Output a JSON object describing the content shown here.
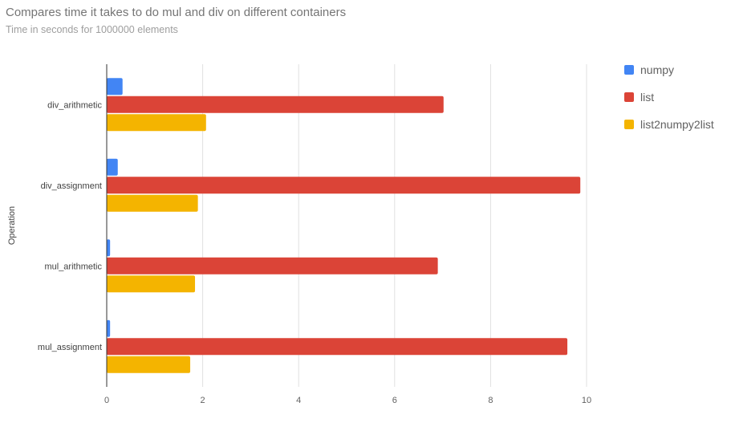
{
  "chart_data": {
    "type": "bar",
    "orientation": "horizontal",
    "title": "Compares time it takes to do mul and div on different containers",
    "subtitle": "Time in seconds for 1000000 elements",
    "ylabel": "Operation",
    "xlabel": "",
    "categories": [
      "div_arithmetic",
      "div_assignment",
      "mul_arithmetic",
      "mul_assignment"
    ],
    "series": [
      {
        "name": "numpy",
        "color": "#4285f4",
        "values": [
          0.33,
          0.23,
          0.07,
          0.07
        ]
      },
      {
        "name": "list",
        "color": "#db4437",
        "values": [
          7.02,
          9.87,
          6.9,
          9.6
        ]
      },
      {
        "name": "list2numpy2list",
        "color": "#f4b400",
        "values": [
          2.07,
          1.9,
          1.84,
          1.74
        ]
      }
    ],
    "xlim": [
      0,
      10
    ],
    "xticks": [
      "0",
      "2",
      "4",
      "6",
      "8",
      "10"
    ],
    "grid": true,
    "legend_position": "right"
  }
}
